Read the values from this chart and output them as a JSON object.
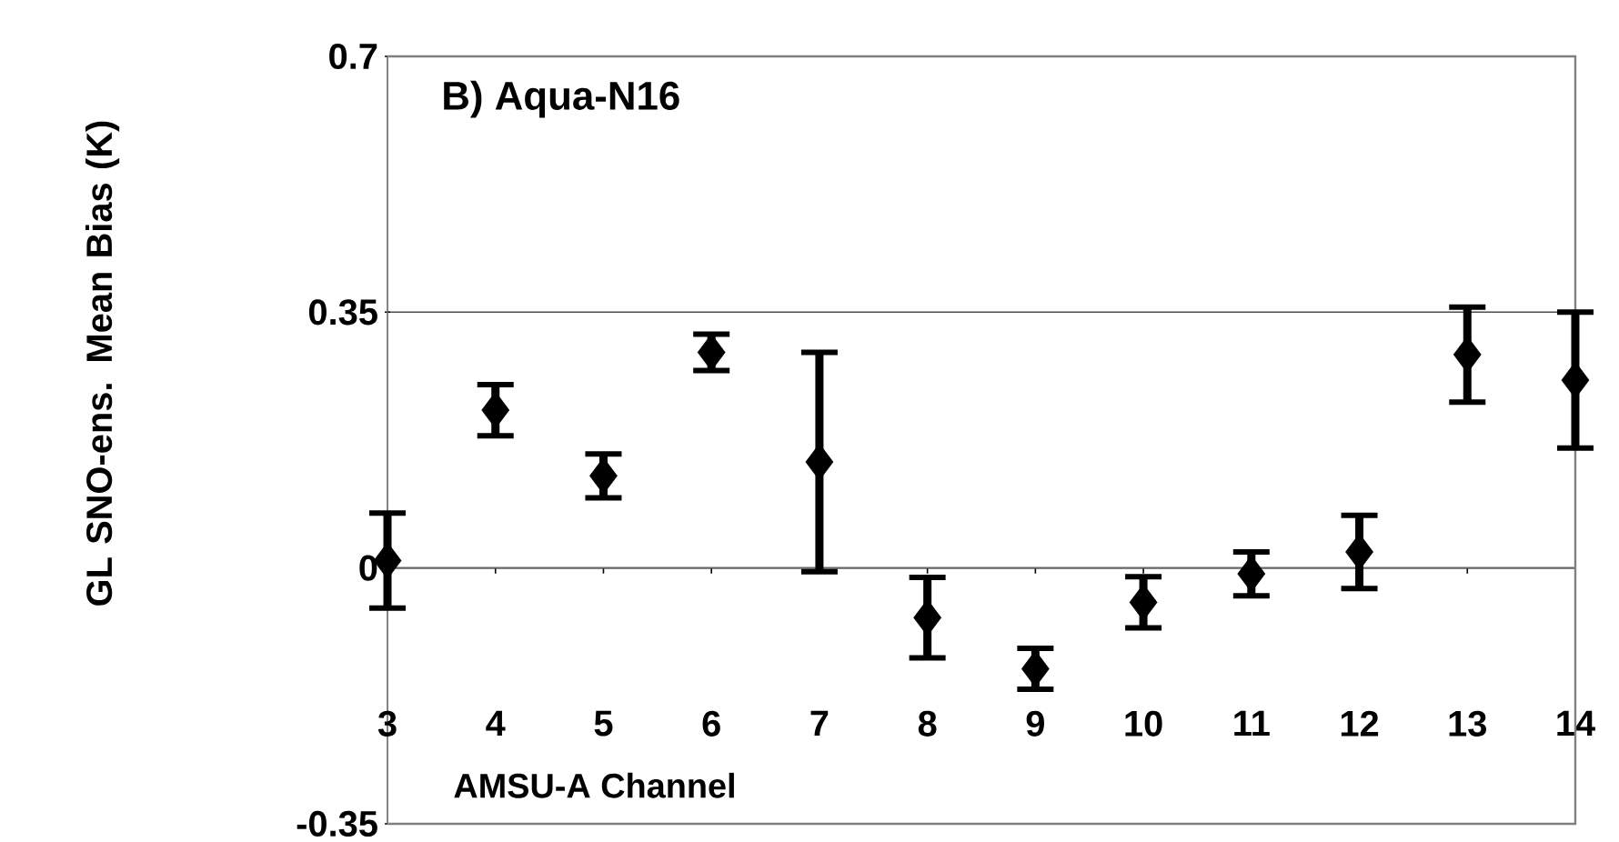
{
  "chart_data": {
    "type": "scatter",
    "title": "B) Aqua-N16",
    "xlabel": "AMSU-A Channel",
    "ylabel": "GL SNO-ens. Mean Bias (K)",
    "categories": [
      "3",
      "4",
      "5",
      "6",
      "7",
      "8",
      "9",
      "10",
      "11",
      "12",
      "13",
      "14"
    ],
    "values": [
      0.01,
      0.216,
      0.126,
      0.295,
      0.145,
      -0.068,
      -0.138,
      -0.047,
      -0.008,
      0.022,
      0.292,
      0.257
    ],
    "errors": [
      0.065,
      0.035,
      0.03,
      0.025,
      0.15,
      0.055,
      0.028,
      0.035,
      0.03,
      0.05,
      0.065,
      0.093
    ],
    "color": "#000000",
    "marker": "diamond",
    "ylim": [
      -0.35,
      0.7
    ],
    "yticks": [
      -0.35,
      0,
      0.35,
      0.7
    ],
    "grid": "y"
  }
}
